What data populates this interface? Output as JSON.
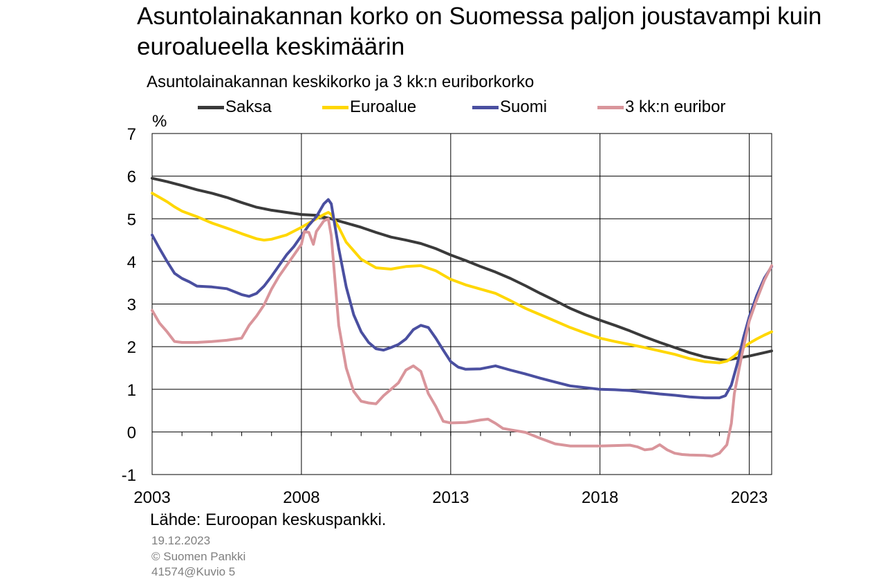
{
  "title": "Asuntolainakannan korko on Suomessa paljon joustavampi kuin euroalueella keskimäärin",
  "subtitle": "Asuntolainakannan keskikorko ja 3 kk:n euriborkorko",
  "unit": "%",
  "source": "Lähde: Euroopan keskuspankki.",
  "date": "19.12.2023",
  "copyright": "© Suomen Pankki",
  "figure_id": "41574@Kuvio 5",
  "chart_data": {
    "type": "line",
    "title": "Asuntolainakannan korko on Suomessa paljon joustavampi kuin euroalueella keskimäärin",
    "subtitle": "Asuntolainakannan keskikorko ja 3 kk:n euriborkorko",
    "ylabel": "%",
    "xlim": [
      2003.0,
      2023.75
    ],
    "ylim": [
      -1,
      7
    ],
    "yticks": [
      -1,
      0,
      1,
      2,
      3,
      4,
      5,
      6,
      7
    ],
    "xtick_labels": [
      "2003",
      "2008",
      "2013",
      "2018",
      "2023"
    ],
    "xtick_values": [
      2003,
      2008,
      2013,
      2018,
      2023
    ],
    "grid": true,
    "legend_position": "top",
    "series": [
      {
        "name": "Saksa",
        "color": "#3a3a3a",
        "points": [
          [
            2003.0,
            5.95
          ],
          [
            2003.5,
            5.87
          ],
          [
            2004.0,
            5.78
          ],
          [
            2004.5,
            5.68
          ],
          [
            2005.0,
            5.6
          ],
          [
            2005.5,
            5.5
          ],
          [
            2006.0,
            5.38
          ],
          [
            2006.5,
            5.27
          ],
          [
            2007.0,
            5.2
          ],
          [
            2007.5,
            5.15
          ],
          [
            2008.0,
            5.1
          ],
          [
            2008.5,
            5.08
          ],
          [
            2009.0,
            5.0
          ],
          [
            2009.5,
            4.9
          ],
          [
            2010.0,
            4.8
          ],
          [
            2010.5,
            4.68
          ],
          [
            2011.0,
            4.57
          ],
          [
            2011.5,
            4.5
          ],
          [
            2012.0,
            4.42
          ],
          [
            2012.5,
            4.3
          ],
          [
            2013.0,
            4.15
          ],
          [
            2013.5,
            4.02
          ],
          [
            2014.0,
            3.88
          ],
          [
            2014.5,
            3.75
          ],
          [
            2015.0,
            3.6
          ],
          [
            2015.5,
            3.43
          ],
          [
            2016.0,
            3.25
          ],
          [
            2016.5,
            3.08
          ],
          [
            2017.0,
            2.9
          ],
          [
            2017.5,
            2.75
          ],
          [
            2018.0,
            2.62
          ],
          [
            2018.5,
            2.5
          ],
          [
            2019.0,
            2.37
          ],
          [
            2019.5,
            2.23
          ],
          [
            2020.0,
            2.1
          ],
          [
            2020.5,
            1.98
          ],
          [
            2021.0,
            1.86
          ],
          [
            2021.5,
            1.76
          ],
          [
            2022.0,
            1.7
          ],
          [
            2022.25,
            1.68
          ],
          [
            2022.5,
            1.72
          ],
          [
            2023.0,
            1.78
          ],
          [
            2023.5,
            1.86
          ],
          [
            2023.75,
            1.9
          ]
        ]
      },
      {
        "name": "Euroalue",
        "color": "#ffd700",
        "points": [
          [
            2003.0,
            5.6
          ],
          [
            2003.25,
            5.5
          ],
          [
            2003.5,
            5.4
          ],
          [
            2003.75,
            5.28
          ],
          [
            2004.0,
            5.18
          ],
          [
            2004.5,
            5.05
          ],
          [
            2005.0,
            4.9
          ],
          [
            2005.5,
            4.78
          ],
          [
            2006.0,
            4.65
          ],
          [
            2006.5,
            4.53
          ],
          [
            2006.75,
            4.5
          ],
          [
            2007.0,
            4.52
          ],
          [
            2007.5,
            4.62
          ],
          [
            2008.0,
            4.8
          ],
          [
            2008.5,
            5.0
          ],
          [
            2008.75,
            5.1
          ],
          [
            2008.9,
            5.15
          ],
          [
            2009.0,
            5.1
          ],
          [
            2009.25,
            4.8
          ],
          [
            2009.5,
            4.45
          ],
          [
            2009.75,
            4.25
          ],
          [
            2010.0,
            4.05
          ],
          [
            2010.5,
            3.85
          ],
          [
            2011.0,
            3.82
          ],
          [
            2011.5,
            3.88
          ],
          [
            2012.0,
            3.9
          ],
          [
            2012.5,
            3.78
          ],
          [
            2013.0,
            3.58
          ],
          [
            2013.5,
            3.45
          ],
          [
            2014.0,
            3.35
          ],
          [
            2014.5,
            3.25
          ],
          [
            2015.0,
            3.08
          ],
          [
            2015.5,
            2.9
          ],
          [
            2016.0,
            2.75
          ],
          [
            2016.5,
            2.6
          ],
          [
            2017.0,
            2.45
          ],
          [
            2017.5,
            2.32
          ],
          [
            2018.0,
            2.2
          ],
          [
            2018.5,
            2.12
          ],
          [
            2019.0,
            2.05
          ],
          [
            2019.5,
            1.98
          ],
          [
            2020.0,
            1.9
          ],
          [
            2020.5,
            1.82
          ],
          [
            2021.0,
            1.72
          ],
          [
            2021.5,
            1.65
          ],
          [
            2022.0,
            1.62
          ],
          [
            2022.25,
            1.66
          ],
          [
            2022.5,
            1.78
          ],
          [
            2022.75,
            1.95
          ],
          [
            2023.0,
            2.08
          ],
          [
            2023.25,
            2.18
          ],
          [
            2023.5,
            2.27
          ],
          [
            2023.75,
            2.35
          ]
        ]
      },
      {
        "name": "Suomi",
        "color": "#4a4fa0",
        "points": [
          [
            2003.0,
            4.62
          ],
          [
            2003.25,
            4.3
          ],
          [
            2003.5,
            4.0
          ],
          [
            2003.75,
            3.72
          ],
          [
            2004.0,
            3.6
          ],
          [
            2004.25,
            3.52
          ],
          [
            2004.5,
            3.42
          ],
          [
            2005.0,
            3.4
          ],
          [
            2005.5,
            3.36
          ],
          [
            2006.0,
            3.22
          ],
          [
            2006.25,
            3.18
          ],
          [
            2006.5,
            3.25
          ],
          [
            2006.75,
            3.42
          ],
          [
            2007.0,
            3.65
          ],
          [
            2007.25,
            3.9
          ],
          [
            2007.5,
            4.15
          ],
          [
            2007.75,
            4.35
          ],
          [
            2008.0,
            4.6
          ],
          [
            2008.25,
            4.85
          ],
          [
            2008.5,
            5.05
          ],
          [
            2008.75,
            5.35
          ],
          [
            2008.9,
            5.45
          ],
          [
            2009.0,
            5.35
          ],
          [
            2009.25,
            4.3
          ],
          [
            2009.5,
            3.4
          ],
          [
            2009.75,
            2.75
          ],
          [
            2010.0,
            2.35
          ],
          [
            2010.25,
            2.1
          ],
          [
            2010.5,
            1.95
          ],
          [
            2010.75,
            1.92
          ],
          [
            2011.0,
            1.98
          ],
          [
            2011.25,
            2.05
          ],
          [
            2011.5,
            2.18
          ],
          [
            2011.75,
            2.4
          ],
          [
            2012.0,
            2.5
          ],
          [
            2012.25,
            2.45
          ],
          [
            2012.5,
            2.2
          ],
          [
            2012.75,
            1.92
          ],
          [
            2013.0,
            1.65
          ],
          [
            2013.25,
            1.52
          ],
          [
            2013.5,
            1.47
          ],
          [
            2014.0,
            1.48
          ],
          [
            2014.5,
            1.55
          ],
          [
            2015.0,
            1.45
          ],
          [
            2015.5,
            1.36
          ],
          [
            2016.0,
            1.26
          ],
          [
            2016.5,
            1.17
          ],
          [
            2017.0,
            1.08
          ],
          [
            2017.5,
            1.04
          ],
          [
            2018.0,
            1.0
          ],
          [
            2018.5,
            0.99
          ],
          [
            2019.0,
            0.97
          ],
          [
            2019.5,
            0.93
          ],
          [
            2020.0,
            0.89
          ],
          [
            2020.5,
            0.86
          ],
          [
            2021.0,
            0.82
          ],
          [
            2021.5,
            0.8
          ],
          [
            2022.0,
            0.8
          ],
          [
            2022.2,
            0.85
          ],
          [
            2022.4,
            1.1
          ],
          [
            2022.6,
            1.6
          ],
          [
            2022.8,
            2.2
          ],
          [
            2023.0,
            2.7
          ],
          [
            2023.25,
            3.2
          ],
          [
            2023.5,
            3.6
          ],
          [
            2023.75,
            3.88
          ]
        ]
      },
      {
        "name": "3 kk:n euribor",
        "color": "#d9959b",
        "points": [
          [
            2003.0,
            2.85
          ],
          [
            2003.25,
            2.55
          ],
          [
            2003.5,
            2.35
          ],
          [
            2003.75,
            2.12
          ],
          [
            2004.0,
            2.1
          ],
          [
            2004.5,
            2.1
          ],
          [
            2005.0,
            2.12
          ],
          [
            2005.5,
            2.15
          ],
          [
            2006.0,
            2.2
          ],
          [
            2006.25,
            2.5
          ],
          [
            2006.5,
            2.72
          ],
          [
            2006.75,
            2.98
          ],
          [
            2007.0,
            3.35
          ],
          [
            2007.25,
            3.65
          ],
          [
            2007.5,
            3.9
          ],
          [
            2007.75,
            4.15
          ],
          [
            2008.0,
            4.4
          ],
          [
            2008.1,
            4.7
          ],
          [
            2008.25,
            4.68
          ],
          [
            2008.4,
            4.4
          ],
          [
            2008.5,
            4.7
          ],
          [
            2008.75,
            4.95
          ],
          [
            2008.9,
            5.0
          ],
          [
            2009.0,
            4.6
          ],
          [
            2009.25,
            2.5
          ],
          [
            2009.5,
            1.5
          ],
          [
            2009.75,
            0.95
          ],
          [
            2010.0,
            0.72
          ],
          [
            2010.25,
            0.68
          ],
          [
            2010.5,
            0.66
          ],
          [
            2010.75,
            0.85
          ],
          [
            2011.0,
            1.0
          ],
          [
            2011.25,
            1.15
          ],
          [
            2011.5,
            1.45
          ],
          [
            2011.75,
            1.55
          ],
          [
            2012.0,
            1.42
          ],
          [
            2012.25,
            0.9
          ],
          [
            2012.5,
            0.6
          ],
          [
            2012.75,
            0.25
          ],
          [
            2013.0,
            0.21
          ],
          [
            2013.5,
            0.22
          ],
          [
            2014.0,
            0.28
          ],
          [
            2014.25,
            0.3
          ],
          [
            2014.5,
            0.2
          ],
          [
            2014.75,
            0.08
          ],
          [
            2015.0,
            0.05
          ],
          [
            2015.5,
            -0.01
          ],
          [
            2016.0,
            -0.15
          ],
          [
            2016.5,
            -0.28
          ],
          [
            2017.0,
            -0.33
          ],
          [
            2017.5,
            -0.33
          ],
          [
            2018.0,
            -0.33
          ],
          [
            2018.5,
            -0.32
          ],
          [
            2019.0,
            -0.31
          ],
          [
            2019.25,
            -0.35
          ],
          [
            2019.5,
            -0.42
          ],
          [
            2019.75,
            -0.4
          ],
          [
            2020.0,
            -0.3
          ],
          [
            2020.25,
            -0.42
          ],
          [
            2020.5,
            -0.5
          ],
          [
            2020.75,
            -0.53
          ],
          [
            2021.0,
            -0.54
          ],
          [
            2021.5,
            -0.55
          ],
          [
            2021.75,
            -0.57
          ],
          [
            2022.0,
            -0.5
          ],
          [
            2022.25,
            -0.3
          ],
          [
            2022.4,
            0.2
          ],
          [
            2022.5,
            0.9
          ],
          [
            2022.75,
            1.8
          ],
          [
            2023.0,
            2.6
          ],
          [
            2023.25,
            3.1
          ],
          [
            2023.5,
            3.55
          ],
          [
            2023.75,
            3.9
          ]
        ]
      }
    ]
  }
}
